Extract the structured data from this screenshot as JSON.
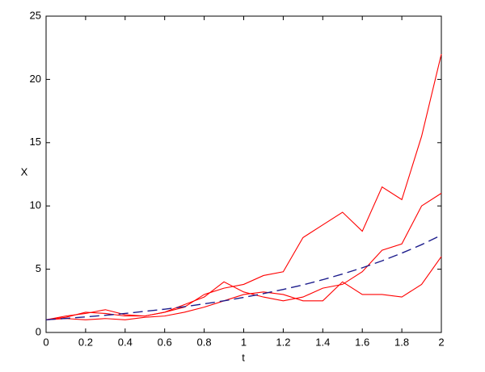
{
  "chart_data": {
    "type": "line",
    "x_label": "t",
    "y_label": "X",
    "x": [
      0,
      0.1,
      0.2,
      0.3,
      0.4,
      0.5,
      0.6,
      0.7,
      0.8,
      0.9,
      1.0,
      1.1,
      1.2,
      1.3,
      1.4,
      1.5,
      1.6,
      1.7,
      1.8,
      1.9,
      2.0
    ],
    "series": [
      {
        "color": "#ff0000",
        "line_style": "solid",
        "values": [
          1.0,
          1.3,
          1.5,
          1.8,
          1.4,
          1.3,
          1.6,
          2.0,
          3.0,
          3.5,
          3.8,
          4.5,
          4.8,
          7.5,
          8.5,
          9.5,
          8.0,
          11.5,
          10.5,
          15.5,
          22
        ]
      },
      {
        "color": "#ff0000",
        "line_style": "solid",
        "values": [
          1.0,
          1.2,
          1.6,
          1.5,
          1.3,
          1.3,
          1.6,
          2.2,
          2.8,
          4.0,
          3.2,
          2.8,
          2.5,
          2.8,
          3.5,
          3.8,
          4.8,
          6.5,
          7.0,
          10,
          11
        ]
      },
      {
        "color": "#ff0000",
        "line_style": "solid",
        "values": [
          1.0,
          1.1,
          1.0,
          1.1,
          1.0,
          1.2,
          1.3,
          1.6,
          2.0,
          2.5,
          3.0,
          3.2,
          3.0,
          2.5,
          2.5,
          4.0,
          3.0,
          3.0,
          2.8,
          3.8,
          6.0
        ]
      },
      {
        "color": "#1c1c8c",
        "line_style": "dashed",
        "values": [
          1.0,
          1.11,
          1.23,
          1.36,
          1.5,
          1.67,
          1.84,
          2.04,
          2.26,
          2.5,
          2.77,
          3.07,
          3.4,
          3.76,
          4.17,
          4.62,
          5.11,
          5.66,
          6.27,
          6.94,
          7.69
        ]
      }
    ],
    "xlim": [
      0,
      2
    ],
    "xticks": [
      0,
      0.2,
      0.4,
      0.6,
      0.8,
      1,
      1.2,
      1.4,
      1.6,
      1.8,
      2
    ],
    "ylim": [
      0,
      25
    ],
    "yticks": [
      0,
      5,
      10,
      15,
      20,
      25
    ],
    "grid": false
  }
}
